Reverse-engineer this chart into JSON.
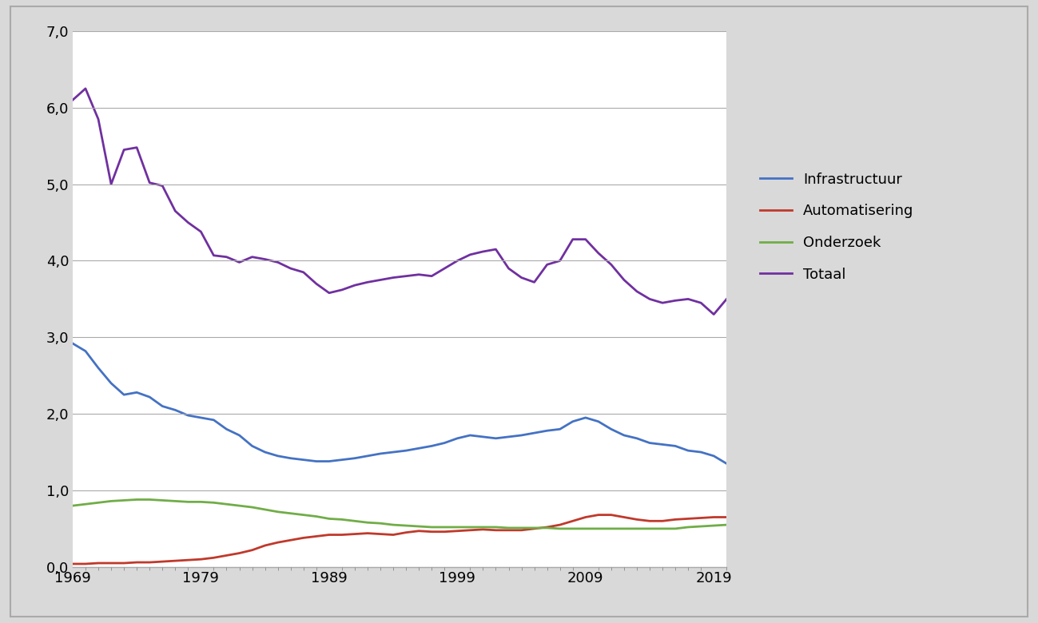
{
  "years": [
    1969,
    1970,
    1971,
    1972,
    1973,
    1974,
    1975,
    1976,
    1977,
    1978,
    1979,
    1980,
    1981,
    1982,
    1983,
    1984,
    1985,
    1986,
    1987,
    1988,
    1989,
    1990,
    1991,
    1992,
    1993,
    1994,
    1995,
    1996,
    1997,
    1998,
    1999,
    2000,
    2001,
    2002,
    2003,
    2004,
    2005,
    2006,
    2007,
    2008,
    2009,
    2010,
    2011,
    2012,
    2013,
    2014,
    2015,
    2016,
    2017,
    2018,
    2019,
    2020
  ],
  "infrastructuur": [
    2.92,
    2.82,
    2.6,
    2.4,
    2.25,
    2.28,
    2.22,
    2.1,
    2.05,
    1.98,
    1.95,
    1.92,
    1.8,
    1.72,
    1.58,
    1.5,
    1.45,
    1.42,
    1.4,
    1.38,
    1.38,
    1.4,
    1.42,
    1.45,
    1.48,
    1.5,
    1.52,
    1.55,
    1.58,
    1.62,
    1.68,
    1.72,
    1.7,
    1.68,
    1.7,
    1.72,
    1.75,
    1.78,
    1.8,
    1.9,
    1.95,
    1.9,
    1.8,
    1.72,
    1.68,
    1.62,
    1.6,
    1.58,
    1.52,
    1.5,
    1.45,
    1.35
  ],
  "automatisering": [
    0.04,
    0.04,
    0.05,
    0.05,
    0.05,
    0.06,
    0.06,
    0.07,
    0.08,
    0.09,
    0.1,
    0.12,
    0.15,
    0.18,
    0.22,
    0.28,
    0.32,
    0.35,
    0.38,
    0.4,
    0.42,
    0.42,
    0.43,
    0.44,
    0.43,
    0.42,
    0.45,
    0.47,
    0.46,
    0.46,
    0.47,
    0.48,
    0.49,
    0.48,
    0.48,
    0.48,
    0.5,
    0.52,
    0.55,
    0.6,
    0.65,
    0.68,
    0.68,
    0.65,
    0.62,
    0.6,
    0.6,
    0.62,
    0.63,
    0.64,
    0.65,
    0.65
  ],
  "onderzoek": [
    0.8,
    0.82,
    0.84,
    0.86,
    0.87,
    0.88,
    0.88,
    0.87,
    0.86,
    0.85,
    0.85,
    0.84,
    0.82,
    0.8,
    0.78,
    0.75,
    0.72,
    0.7,
    0.68,
    0.66,
    0.63,
    0.62,
    0.6,
    0.58,
    0.57,
    0.55,
    0.54,
    0.53,
    0.52,
    0.52,
    0.52,
    0.52,
    0.52,
    0.52,
    0.51,
    0.51,
    0.51,
    0.51,
    0.5,
    0.5,
    0.5,
    0.5,
    0.5,
    0.5,
    0.5,
    0.5,
    0.5,
    0.5,
    0.52,
    0.53,
    0.54,
    0.55
  ],
  "totaal": [
    6.1,
    6.25,
    5.85,
    5.0,
    5.45,
    5.48,
    5.02,
    4.98,
    4.65,
    4.5,
    4.38,
    4.07,
    4.05,
    3.98,
    4.05,
    4.02,
    3.98,
    3.9,
    3.85,
    3.7,
    3.58,
    3.62,
    3.68,
    3.72,
    3.75,
    3.78,
    3.8,
    3.82,
    3.8,
    3.9,
    4.0,
    4.08,
    4.12,
    4.15,
    3.9,
    3.78,
    3.72,
    3.95,
    4.0,
    4.28,
    4.28,
    4.1,
    3.95,
    3.75,
    3.6,
    3.5,
    3.45,
    3.48,
    3.5,
    3.45,
    3.3,
    3.5
  ],
  "color_infra": "#4472C4",
  "color_auto": "#C0392B",
  "color_onderzoek": "#70AD47",
  "color_totaal": "#7030A0",
  "ylim": [
    0.0,
    7.0
  ],
  "yticks": [
    0.0,
    1.0,
    2.0,
    3.0,
    4.0,
    5.0,
    6.0,
    7.0
  ],
  "xticks": [
    1969,
    1979,
    1989,
    1999,
    2009,
    2019
  ],
  "legend_labels": [
    "Infrastructuur",
    "Automatisering",
    "Onderzoek",
    "Totaal"
  ],
  "figure_bg": "#D9D9D9",
  "plot_bg": "#FFFFFF",
  "grid_color": "#AAAAAA",
  "border_color": "#AAAAAA",
  "linewidth": 2.0,
  "tick_label_fontsize": 13,
  "legend_fontsize": 13
}
